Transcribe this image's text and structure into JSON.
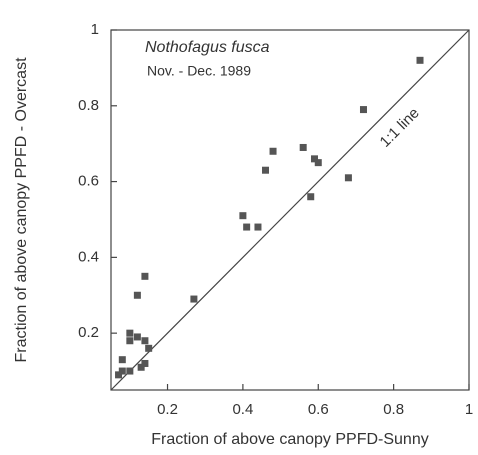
{
  "chart_data": {
    "type": "scatter",
    "annotations": [
      "Nothofagus fusca",
      "Nov. - Dec. 1989",
      "1:1 line"
    ],
    "x_label": "Fraction of above canopy PPFD-Sunny",
    "y_label": "Fraction of above canopy PPFD - Overcast",
    "color": "#555555",
    "x": [
      0.87,
      0.72,
      0.56,
      0.59,
      0.6,
      0.48,
      0.46,
      0.68,
      0.58,
      0.4,
      0.41,
      0.44,
      0.27,
      0.14,
      0.12,
      0.1,
      0.1,
      0.12,
      0.14,
      0.15,
      0.13,
      0.14,
      0.08,
      0.08,
      0.1,
      0.07
    ],
    "values": [
      0.92,
      0.79,
      0.69,
      0.66,
      0.65,
      0.68,
      0.63,
      0.61,
      0.56,
      0.51,
      0.48,
      0.48,
      0.29,
      0.35,
      0.3,
      0.2,
      0.18,
      0.19,
      0.18,
      0.16,
      0.11,
      0.12,
      0.13,
      0.1,
      0.1,
      0.09
    ],
    "xlim": [
      0.05,
      1
    ],
    "ylim": [
      0.05,
      1
    ],
    "xticks": [
      0.2,
      0.4,
      0.6,
      0.8,
      1
    ],
    "yticks": [
      0.2,
      0.4,
      0.6,
      0.8,
      1
    ]
  }
}
